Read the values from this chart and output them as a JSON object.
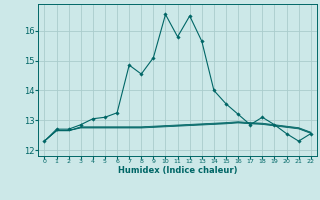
{
  "xlabel": "Humidex (Indice chaleur)",
  "background_color": "#cce8e8",
  "line_color": "#006666",
  "grid_color": "#aacccc",
  "xlim": [
    -0.5,
    22.5
  ],
  "ylim": [
    11.8,
    16.9
  ],
  "yticks": [
    12,
    13,
    14,
    15,
    16
  ],
  "xticks": [
    0,
    1,
    2,
    3,
    4,
    5,
    6,
    7,
    8,
    9,
    10,
    11,
    12,
    13,
    14,
    15,
    16,
    17,
    18,
    19,
    20,
    21,
    22
  ],
  "series1_x": [
    0,
    1,
    2,
    3,
    4,
    5,
    6,
    7,
    8,
    9,
    10,
    11,
    12,
    13,
    14,
    15,
    16,
    17,
    18,
    19,
    20,
    21,
    22
  ],
  "series1_y": [
    12.3,
    12.7,
    12.7,
    12.85,
    13.05,
    13.1,
    13.25,
    14.85,
    14.55,
    15.1,
    16.55,
    15.8,
    16.5,
    15.65,
    14.0,
    13.55,
    13.2,
    12.85,
    13.1,
    12.85,
    12.55,
    12.3,
    12.55
  ],
  "series2_x": [
    0,
    1,
    2,
    3,
    4,
    5,
    6,
    7,
    8,
    9,
    10,
    11,
    12,
    13,
    14,
    15,
    16,
    17,
    18,
    19,
    20,
    21,
    22
  ],
  "series2_y": [
    12.3,
    12.65,
    12.65,
    12.78,
    12.78,
    12.78,
    12.78,
    12.78,
    12.78,
    12.8,
    12.82,
    12.84,
    12.86,
    12.88,
    12.9,
    12.92,
    12.95,
    12.92,
    12.9,
    12.85,
    12.8,
    12.75,
    12.6
  ],
  "series3_x": [
    0,
    1,
    2,
    3,
    4,
    5,
    6,
    7,
    8,
    9,
    10,
    11,
    12,
    13,
    14,
    15,
    16,
    17,
    18,
    19,
    20,
    21,
    22
  ],
  "series3_y": [
    12.3,
    12.65,
    12.65,
    12.76,
    12.76,
    12.76,
    12.76,
    12.76,
    12.76,
    12.78,
    12.8,
    12.82,
    12.84,
    12.86,
    12.88,
    12.9,
    12.93,
    12.9,
    12.88,
    12.83,
    12.78,
    12.73,
    12.58
  ],
  "series4_x": [
    0,
    1,
    2,
    3,
    4,
    5,
    6,
    7,
    8,
    9,
    10,
    11,
    12,
    13,
    14,
    15,
    16,
    17,
    18,
    19,
    20,
    21,
    22
  ],
  "series4_y": [
    12.3,
    12.65,
    12.65,
    12.74,
    12.74,
    12.74,
    12.74,
    12.74,
    12.74,
    12.76,
    12.78,
    12.8,
    12.82,
    12.84,
    12.86,
    12.88,
    12.91,
    12.88,
    12.86,
    12.81,
    12.76,
    12.71,
    12.56
  ]
}
